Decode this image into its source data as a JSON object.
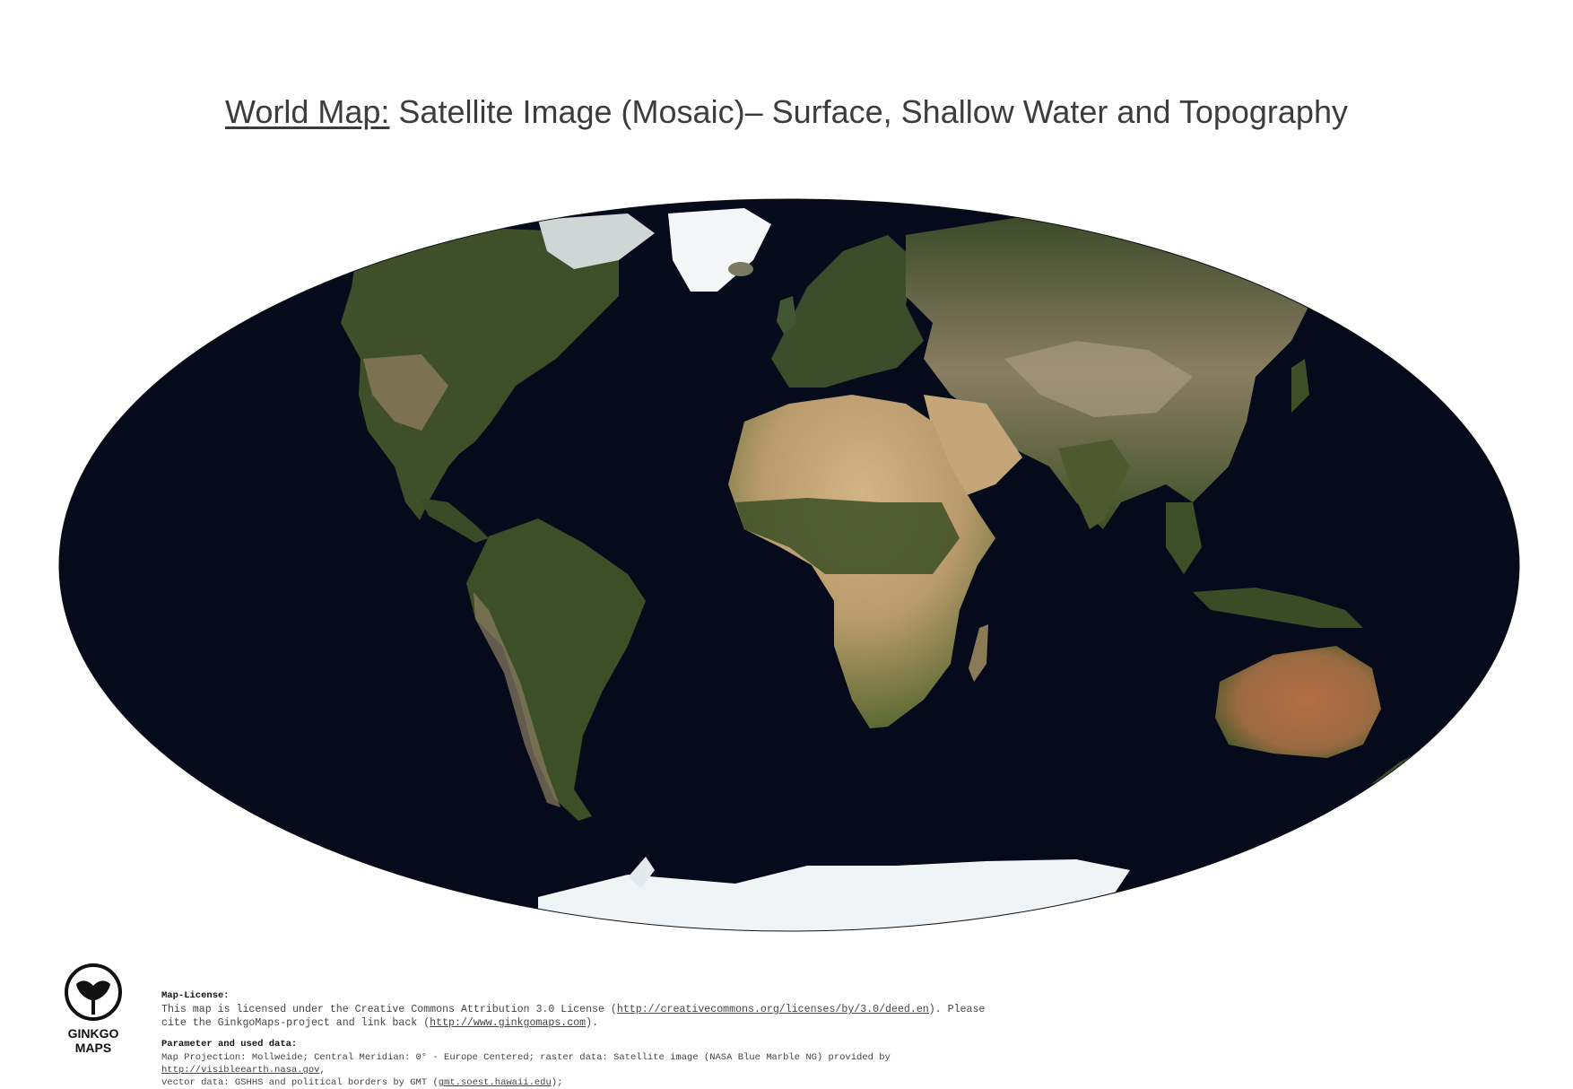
{
  "title": {
    "lead": "World Map:",
    "rest": " Satellite Image (Mosaic)– Surface, Shallow Water and Topography"
  },
  "map": {
    "projection": "Mollweide",
    "ocean_color": "#060b1c",
    "land_color": "#3f5029",
    "desert_color": "#c8a77a",
    "ice_color": "#f2f5f8"
  },
  "logo": {
    "icon": "ginkgo-leaf-icon",
    "line1": "GINKGO",
    "line2": "MAPS"
  },
  "footer": {
    "license_heading": "Map-License:",
    "license_text_1": "This map is licensed under the Creative Commons Attribution 3.0 License (",
    "license_link": "http://creativecommons.org/licenses/by/3.0/deed.en",
    "license_text_2": ").  Please",
    "cite_text_1": "cite the GinkgoMaps-project and link back (",
    "cite_link": "http://www.ginkgomaps.com",
    "cite_text_2": ").",
    "params_heading": "Parameter and used data:",
    "params_text_1": "Map Projection: Mollweide; Central Meridian: 0° - Europe Centered; raster data: Satellite image (NASA Blue Marble NG) provided by ",
    "params_link": "http://visibleearth.nasa.gov",
    "params_text_2": ",",
    "vector_text_1": "vector data: GSHHS and political borders by GMT (",
    "vector_link": "gmt.soest.hawaii.edu",
    "vector_text_2": ");"
  }
}
